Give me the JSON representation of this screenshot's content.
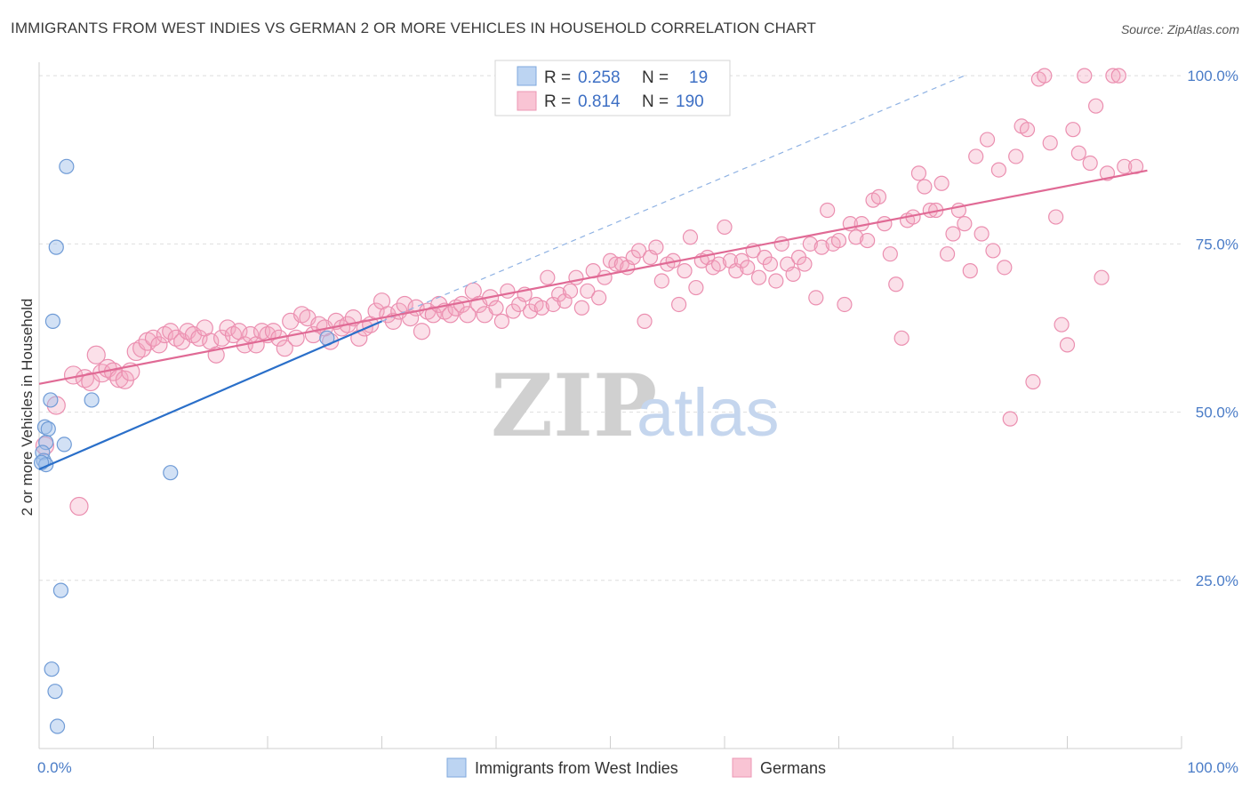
{
  "title": "IMMIGRANTS FROM WEST INDIES VS GERMAN 2 OR MORE VEHICLES IN HOUSEHOLD CORRELATION CHART",
  "source": "Source: ZipAtlas.com",
  "watermark": {
    "zip": "ZIP",
    "atlas": "atlas"
  },
  "colors": {
    "blue": "#9bbde8",
    "blue_line": "#2a6fc9",
    "pink": "#f4a7c0",
    "pink_line": "#e06a95"
  },
  "stats_box": {
    "rows": [
      {
        "r_label": "R =",
        "r_value": "0.258",
        "n_label": "N =",
        "n_value": "19"
      },
      {
        "r_label": "R =",
        "r_value": "0.814",
        "n_label": "N =",
        "n_value": "190"
      }
    ]
  },
  "legend": {
    "series1": "Immigrants from West Indies",
    "series2": "Germans"
  },
  "chart_data": {
    "type": "scatter",
    "xlabel": "",
    "ylabel": "2 or more Vehicles in Household",
    "xlim": [
      0,
      100
    ],
    "ylim": [
      0,
      102
    ],
    "x_ticks": [
      "0.0%",
      "100.0%"
    ],
    "y_ticks": [
      {
        "value": 25,
        "label": "25.0%"
      },
      {
        "value": 50,
        "label": "50.0%"
      },
      {
        "value": 75,
        "label": "75.0%"
      },
      {
        "value": 100,
        "label": "100.0%"
      }
    ],
    "grid": true,
    "series": [
      {
        "name": "Immigrants from West Indies",
        "trend": {
          "x": [
            0,
            30
          ],
          "y": [
            41.5,
            63.5
          ]
        },
        "points": [
          [
            2.4,
            86.5
          ],
          [
            1.5,
            74.5
          ],
          [
            1.2,
            63.5
          ],
          [
            1.0,
            51.8
          ],
          [
            4.6,
            51.8
          ],
          [
            0.5,
            47.8
          ],
          [
            0.8,
            47.5
          ],
          [
            2.2,
            45.2
          ],
          [
            0.6,
            45.5
          ],
          [
            0.3,
            44.0
          ],
          [
            0.4,
            42.8
          ],
          [
            0.6,
            42.2
          ],
          [
            11.5,
            41.0
          ],
          [
            25.2,
            61.0
          ],
          [
            1.9,
            23.5
          ],
          [
            1.1,
            11.8
          ],
          [
            1.4,
            8.5
          ],
          [
            1.6,
            3.3
          ],
          [
            0.2,
            42.5
          ]
        ]
      },
      {
        "name": "Germans",
        "trend": {
          "x": [
            0,
            97
          ],
          "y": [
            54.2,
            85.9
          ]
        },
        "extension": {
          "x": [
            30,
            81
          ],
          "y": [
            63.5,
            100
          ]
        },
        "points": [
          [
            0.5,
            45
          ],
          [
            1.5,
            51
          ],
          [
            3,
            55.5
          ],
          [
            4,
            55
          ],
          [
            4.5,
            54.5
          ],
          [
            5,
            58.5
          ],
          [
            5.5,
            55.8
          ],
          [
            6,
            56.5
          ],
          [
            6.5,
            56
          ],
          [
            7,
            55
          ],
          [
            7.5,
            54.8
          ],
          [
            8,
            56
          ],
          [
            8.5,
            59
          ],
          [
            9,
            59.5
          ],
          [
            9.5,
            60.5
          ],
          [
            10,
            61
          ],
          [
            10.5,
            60
          ],
          [
            11,
            61.5
          ],
          [
            11.5,
            62
          ],
          [
            12,
            61
          ],
          [
            12.5,
            60.5
          ],
          [
            13,
            62
          ],
          [
            13.5,
            61.5
          ],
          [
            14,
            61
          ],
          [
            14.5,
            62.5
          ],
          [
            15,
            60.5
          ],
          [
            15.5,
            58.5
          ],
          [
            16,
            61
          ],
          [
            16.5,
            62.5
          ],
          [
            17,
            61.5
          ],
          [
            17.5,
            62
          ],
          [
            18,
            60
          ],
          [
            18.5,
            61.5
          ],
          [
            19,
            60
          ],
          [
            19.5,
            62
          ],
          [
            20,
            61.5
          ],
          [
            20.5,
            62
          ],
          [
            21,
            61
          ],
          [
            21.5,
            59.5
          ],
          [
            22,
            63.5
          ],
          [
            22.5,
            61
          ],
          [
            23,
            64.5
          ],
          [
            23.5,
            64
          ],
          [
            24,
            61.5
          ],
          [
            24.5,
            63
          ],
          [
            25,
            62.5
          ],
          [
            25.5,
            60.5
          ],
          [
            26,
            63.5
          ],
          [
            26.5,
            62.5
          ],
          [
            27,
            63
          ],
          [
            27.5,
            64
          ],
          [
            28,
            61
          ],
          [
            28.5,
            62.5
          ],
          [
            29,
            63
          ],
          [
            29.5,
            65
          ],
          [
            30,
            66.5
          ],
          [
            30.5,
            64.5
          ],
          [
            31,
            63.5
          ],
          [
            31.5,
            65
          ],
          [
            32,
            66
          ],
          [
            32.5,
            64
          ],
          [
            33,
            65.5
          ],
          [
            33.5,
            62
          ],
          [
            34,
            65
          ],
          [
            34.5,
            64.5
          ],
          [
            35,
            66
          ],
          [
            35.5,
            65
          ],
          [
            36,
            64.5
          ],
          [
            36.5,
            65.5
          ],
          [
            37,
            66
          ],
          [
            37.5,
            64.5
          ],
          [
            38,
            68
          ],
          [
            38.5,
            66
          ],
          [
            39,
            64.5
          ],
          [
            39.5,
            67
          ],
          [
            40,
            65.5
          ],
          [
            40.5,
            63.5
          ],
          [
            41,
            68
          ],
          [
            41.5,
            65
          ],
          [
            42,
            66
          ],
          [
            42.5,
            67.5
          ],
          [
            43,
            65
          ],
          [
            43.5,
            66
          ],
          [
            44,
            65.5
          ],
          [
            44.5,
            70
          ],
          [
            45,
            66
          ],
          [
            45.5,
            67.5
          ],
          [
            46,
            66.5
          ],
          [
            46.5,
            68
          ],
          [
            47,
            70
          ],
          [
            47.5,
            65.5
          ],
          [
            48,
            68
          ],
          [
            48.5,
            71
          ],
          [
            49,
            67
          ],
          [
            49.5,
            70
          ],
          [
            50,
            72.5
          ],
          [
            50.5,
            72
          ],
          [
            51,
            72
          ],
          [
            51.5,
            71.5
          ],
          [
            52,
            73
          ],
          [
            52.5,
            74
          ],
          [
            53,
            63.5
          ],
          [
            53.5,
            73
          ],
          [
            54,
            74.5
          ],
          [
            54.5,
            69.5
          ],
          [
            55,
            72
          ],
          [
            55.5,
            72.5
          ],
          [
            56,
            66
          ],
          [
            56.5,
            71
          ],
          [
            57,
            76
          ],
          [
            57.5,
            68.5
          ],
          [
            58,
            72.5
          ],
          [
            58.5,
            73
          ],
          [
            59,
            71.5
          ],
          [
            59.5,
            72
          ],
          [
            60,
            77.5
          ],
          [
            60.5,
            72.5
          ],
          [
            61,
            71
          ],
          [
            61.5,
            72.5
          ],
          [
            62,
            71.5
          ],
          [
            62.5,
            74
          ],
          [
            63,
            70
          ],
          [
            63.5,
            73
          ],
          [
            64,
            72
          ],
          [
            64.5,
            69.5
          ],
          [
            65,
            75
          ],
          [
            65.5,
            72
          ],
          [
            66,
            70.5
          ],
          [
            66.5,
            73
          ],
          [
            67,
            72
          ],
          [
            67.5,
            75
          ],
          [
            68,
            67
          ],
          [
            68.5,
            74.5
          ],
          [
            69,
            80
          ],
          [
            69.5,
            75
          ],
          [
            70,
            75.5
          ],
          [
            70.5,
            66
          ],
          [
            71,
            78
          ],
          [
            71.5,
            76
          ],
          [
            72,
            78
          ],
          [
            72.5,
            75.5
          ],
          [
            73,
            81.5
          ],
          [
            73.5,
            82
          ],
          [
            74,
            78
          ],
          [
            74.5,
            73.5
          ],
          [
            75,
            69
          ],
          [
            75.5,
            61
          ],
          [
            76,
            78.5
          ],
          [
            76.5,
            79
          ],
          [
            77,
            85.5
          ],
          [
            77.5,
            83.5
          ],
          [
            78,
            80
          ],
          [
            78.5,
            80
          ],
          [
            79,
            84
          ],
          [
            79.5,
            73.5
          ],
          [
            80,
            76.5
          ],
          [
            80.5,
            80
          ],
          [
            81,
            78
          ],
          [
            81.5,
            71
          ],
          [
            82,
            88
          ],
          [
            82.5,
            76.5
          ],
          [
            83,
            90.5
          ],
          [
            83.5,
            74
          ],
          [
            84,
            86
          ],
          [
            84.5,
            71.5
          ],
          [
            85,
            49
          ],
          [
            85.5,
            88
          ],
          [
            86,
            92.5
          ],
          [
            86.5,
            92
          ],
          [
            87,
            54.5
          ],
          [
            87.5,
            99.5
          ],
          [
            88,
            100
          ],
          [
            88.5,
            90
          ],
          [
            89,
            79
          ],
          [
            89.5,
            63
          ],
          [
            90,
            60
          ],
          [
            90.5,
            92
          ],
          [
            91,
            88.5
          ],
          [
            91.5,
            100
          ],
          [
            92,
            87
          ],
          [
            92.5,
            95.5
          ],
          [
            93,
            70
          ],
          [
            93.5,
            85.5
          ],
          [
            94,
            100
          ],
          [
            94.5,
            100
          ],
          [
            95,
            86.5
          ],
          [
            96,
            86.5
          ],
          [
            3.5,
            36
          ]
        ]
      }
    ]
  }
}
